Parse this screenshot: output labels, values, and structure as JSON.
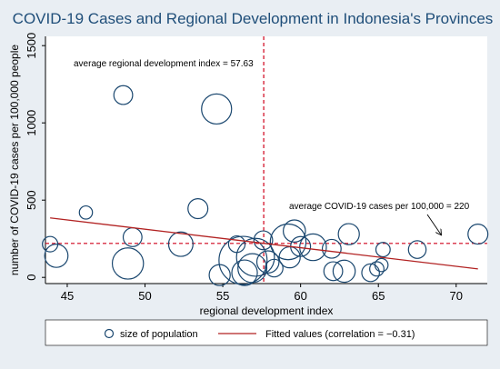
{
  "chart_data": {
    "type": "scatter",
    "title": "COVID-19 Cases and Regional Development in Indonesia's Provinces",
    "xlabel": "regional development index",
    "ylabel": "number of COVID-19 cases per 100,000 people",
    "xlim": [
      43.6,
      72.0
    ],
    "ylim": [
      -40,
      1560
    ],
    "xticks": [
      45,
      50,
      55,
      60,
      65,
      70
    ],
    "yticks": [
      0,
      500,
      1000,
      1500
    ],
    "grid": false,
    "legend_position": "bottom",
    "colors": {
      "marker": "#1a476f",
      "fit": "#b22222",
      "mean_lines": "#d0021b",
      "plot_bg": "#ffffff",
      "outer_bg": "#e9eef3",
      "title": "#1f4e79"
    },
    "series": [
      {
        "name": "size of population",
        "points": [
          {
            "x": 43.9,
            "y": 215,
            "size": 0.8
          },
          {
            "x": 44.3,
            "y": 140,
            "size": 1.5
          },
          {
            "x": 46.2,
            "y": 420,
            "size": 0.6
          },
          {
            "x": 48.6,
            "y": 1180,
            "size": 1.1
          },
          {
            "x": 48.9,
            "y": 90,
            "size": 2.2
          },
          {
            "x": 49.2,
            "y": 260,
            "size": 1.1
          },
          {
            "x": 52.3,
            "y": 215,
            "size": 1.6
          },
          {
            "x": 53.4,
            "y": 445,
            "size": 1.2
          },
          {
            "x": 54.6,
            "y": 1090,
            "size": 2.1
          },
          {
            "x": 54.8,
            "y": 15,
            "size": 1.3
          },
          {
            "x": 55.9,
            "y": 215,
            "size": 0.9
          },
          {
            "x": 56.3,
            "y": 110,
            "size": 3.7
          },
          {
            "x": 56.4,
            "y": 30,
            "size": 1.7
          },
          {
            "x": 56.9,
            "y": 60,
            "size": 2.0
          },
          {
            "x": 57.1,
            "y": 130,
            "size": 2.8
          },
          {
            "x": 57.6,
            "y": 240,
            "size": 1.1
          },
          {
            "x": 57.9,
            "y": 100,
            "size": 1.4
          },
          {
            "x": 58.3,
            "y": 60,
            "size": 1.0
          },
          {
            "x": 59.2,
            "y": 230,
            "size": 2.6
          },
          {
            "x": 59.3,
            "y": 130,
            "size": 1.3
          },
          {
            "x": 59.6,
            "y": 300,
            "size": 1.4
          },
          {
            "x": 60.0,
            "y": 200,
            "size": 1.2
          },
          {
            "x": 60.8,
            "y": 195,
            "size": 1.8
          },
          {
            "x": 62.0,
            "y": 185,
            "size": 1.1
          },
          {
            "x": 62.1,
            "y": 40,
            "size": 1.1
          },
          {
            "x": 62.8,
            "y": 40,
            "size": 1.4
          },
          {
            "x": 63.1,
            "y": 280,
            "size": 1.3
          },
          {
            "x": 64.5,
            "y": 30,
            "size": 1.0
          },
          {
            "x": 64.9,
            "y": 55,
            "size": 0.7
          },
          {
            "x": 65.2,
            "y": 80,
            "size": 0.6
          },
          {
            "x": 65.3,
            "y": 180,
            "size": 0.7
          },
          {
            "x": 67.5,
            "y": 180,
            "size": 1.0
          },
          {
            "x": 71.4,
            "y": 280,
            "size": 1.2
          }
        ]
      },
      {
        "name": "Fitted values (correlation = −0.31)",
        "type": "line",
        "points": [
          {
            "x": 43.9,
            "y": 385
          },
          {
            "x": 71.4,
            "y": 55
          }
        ]
      }
    ],
    "reference_lines": {
      "x": 57.63,
      "y": 220
    },
    "annotations": {
      "x_mean": "average regional development index = 57.63",
      "y_mean": "average COVID-19 cases per 100,000 = 220"
    }
  }
}
